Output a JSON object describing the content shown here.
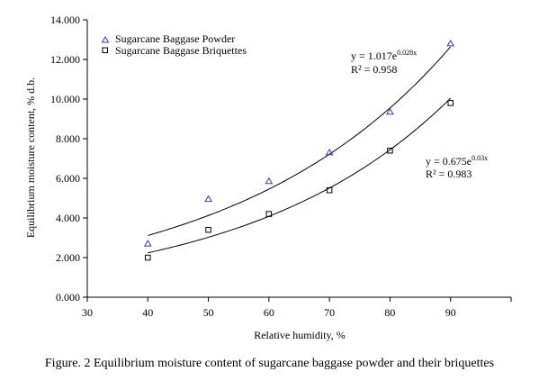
{
  "caption": "Figure. 2 Equilibrium moisture content of sugarcane baggase powder and their briquettes",
  "chart_data": {
    "type": "scatter",
    "xlabel": "Relative humidity, %",
    "ylabel": "Equilibrium moisture content, % d.b.",
    "xlim": [
      30,
      100
    ],
    "ylim": [
      0,
      14
    ],
    "x_ticks": [
      "30",
      "40",
      "50",
      "60",
      "70",
      "80",
      "90"
    ],
    "y_ticks": [
      "0.000",
      "2.000",
      "4.000",
      "6.000",
      "8.000",
      "10.000",
      "12.000",
      "14.000"
    ],
    "grid": false,
    "legend_position": "top-left",
    "series": [
      {
        "name": "Sugarcane Baggase Powder",
        "marker": "triangle",
        "color": "#3b3bb0",
        "x": [
          40,
          50,
          60,
          70,
          80,
          90
        ],
        "y": [
          2.7,
          4.95,
          5.85,
          7.3,
          9.35,
          12.8
        ],
        "trendline": {
          "a": 1.017,
          "b": 0.028,
          "equation_prefix": "y = 1.017e",
          "exponent": "0.028x",
          "r2": "R² = 0.958"
        }
      },
      {
        "name": "Sugarcane Baggase Briquettes",
        "marker": "square",
        "color": "#000000",
        "x": [
          40,
          50,
          60,
          70,
          80,
          90
        ],
        "y": [
          2.0,
          3.4,
          4.2,
          5.4,
          7.4,
          9.8
        ],
        "trendline": {
          "a": 0.675,
          "b": 0.03,
          "equation_prefix": "y = 0.675e",
          "exponent": "0.03x",
          "r2": "R² = 0.983"
        }
      }
    ]
  }
}
